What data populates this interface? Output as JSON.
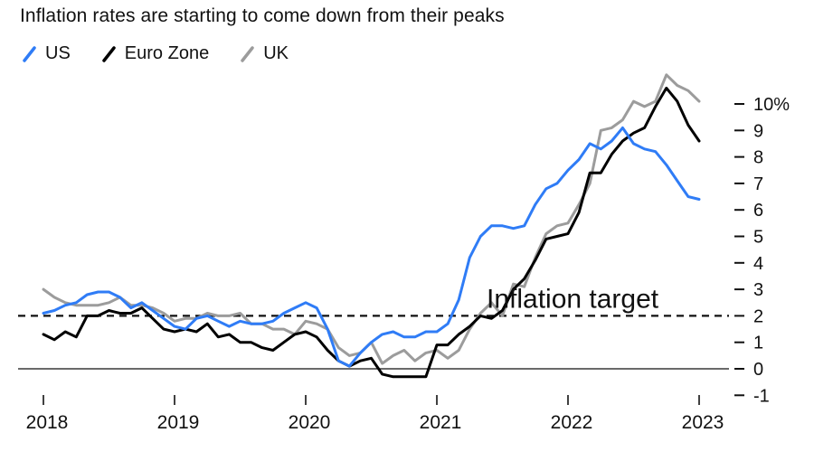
{
  "chart_data": {
    "type": "line",
    "title": "Inflation rates are starting to come down from their peaks",
    "x_start_year": 2018,
    "x_step_months": 1,
    "x_tick_labels": [
      "2018",
      "2019",
      "2020",
      "2021",
      "2022",
      "2023"
    ],
    "y_ticks": [
      -1,
      0,
      1,
      2,
      3,
      4,
      5,
      6,
      7,
      8,
      9,
      10
    ],
    "y_top_tick_label": "10%",
    "ylim": [
      -1,
      11.3
    ],
    "grid": "off",
    "legend_position": "top-left",
    "zero_line": {
      "y": 0,
      "color": "#111111"
    },
    "target_line": {
      "y": 2,
      "style": "dashed",
      "color": "#111111"
    },
    "annotation": {
      "text": "Inflation target",
      "y": 2
    },
    "series": [
      {
        "name": "US",
        "color": "#2F7CF6",
        "values": [
          2.1,
          2.2,
          2.4,
          2.5,
          2.8,
          2.9,
          2.9,
          2.7,
          2.3,
          2.5,
          2.2,
          1.9,
          1.6,
          1.5,
          1.9,
          2.0,
          1.8,
          1.6,
          1.8,
          1.7,
          1.7,
          1.8,
          2.1,
          2.3,
          2.5,
          2.3,
          1.5,
          0.3,
          0.1,
          0.6,
          1.0,
          1.3,
          1.4,
          1.2,
          1.2,
          1.4,
          1.4,
          1.7,
          2.6,
          4.2,
          5.0,
          5.4,
          5.4,
          5.3,
          5.4,
          6.2,
          6.8,
          7.0,
          7.5,
          7.9,
          8.5,
          8.3,
          8.6,
          9.1,
          8.5,
          8.3,
          8.2,
          7.7,
          7.1,
          6.5,
          6.4
        ]
      },
      {
        "name": "Euro Zone",
        "color": "#000000",
        "values": [
          1.3,
          1.1,
          1.4,
          1.2,
          2.0,
          2.0,
          2.2,
          2.1,
          2.1,
          2.3,
          1.9,
          1.5,
          1.4,
          1.5,
          1.4,
          1.7,
          1.2,
          1.3,
          1.0,
          1.0,
          0.8,
          0.7,
          1.0,
          1.3,
          1.4,
          1.2,
          0.7,
          0.3,
          0.1,
          0.3,
          0.4,
          -0.2,
          -0.3,
          -0.3,
          -0.3,
          -0.3,
          0.9,
          0.9,
          1.3,
          1.6,
          2.0,
          1.9,
          2.2,
          3.0,
          3.4,
          4.1,
          4.9,
          5.0,
          5.1,
          5.9,
          7.4,
          7.4,
          8.1,
          8.6,
          8.9,
          9.1,
          9.9,
          10.6,
          10.1,
          9.2,
          8.6
        ]
      },
      {
        "name": "UK",
        "color": "#9C9C9C",
        "values": [
          3.0,
          2.7,
          2.5,
          2.4,
          2.4,
          2.4,
          2.5,
          2.7,
          2.4,
          2.4,
          2.3,
          2.1,
          1.8,
          1.9,
          1.9,
          2.1,
          2.0,
          2.0,
          2.1,
          1.7,
          1.7,
          1.5,
          1.5,
          1.3,
          1.8,
          1.7,
          1.5,
          0.8,
          0.5,
          0.6,
          1.0,
          0.2,
          0.5,
          0.7,
          0.3,
          0.6,
          0.7,
          0.4,
          0.7,
          1.5,
          2.1,
          2.5,
          2.0,
          3.2,
          3.1,
          4.2,
          5.1,
          5.4,
          5.5,
          6.2,
          7.0,
          9.0,
          9.1,
          9.4,
          10.1,
          9.9,
          10.1,
          11.1,
          10.7,
          10.5,
          10.1
        ]
      }
    ]
  }
}
